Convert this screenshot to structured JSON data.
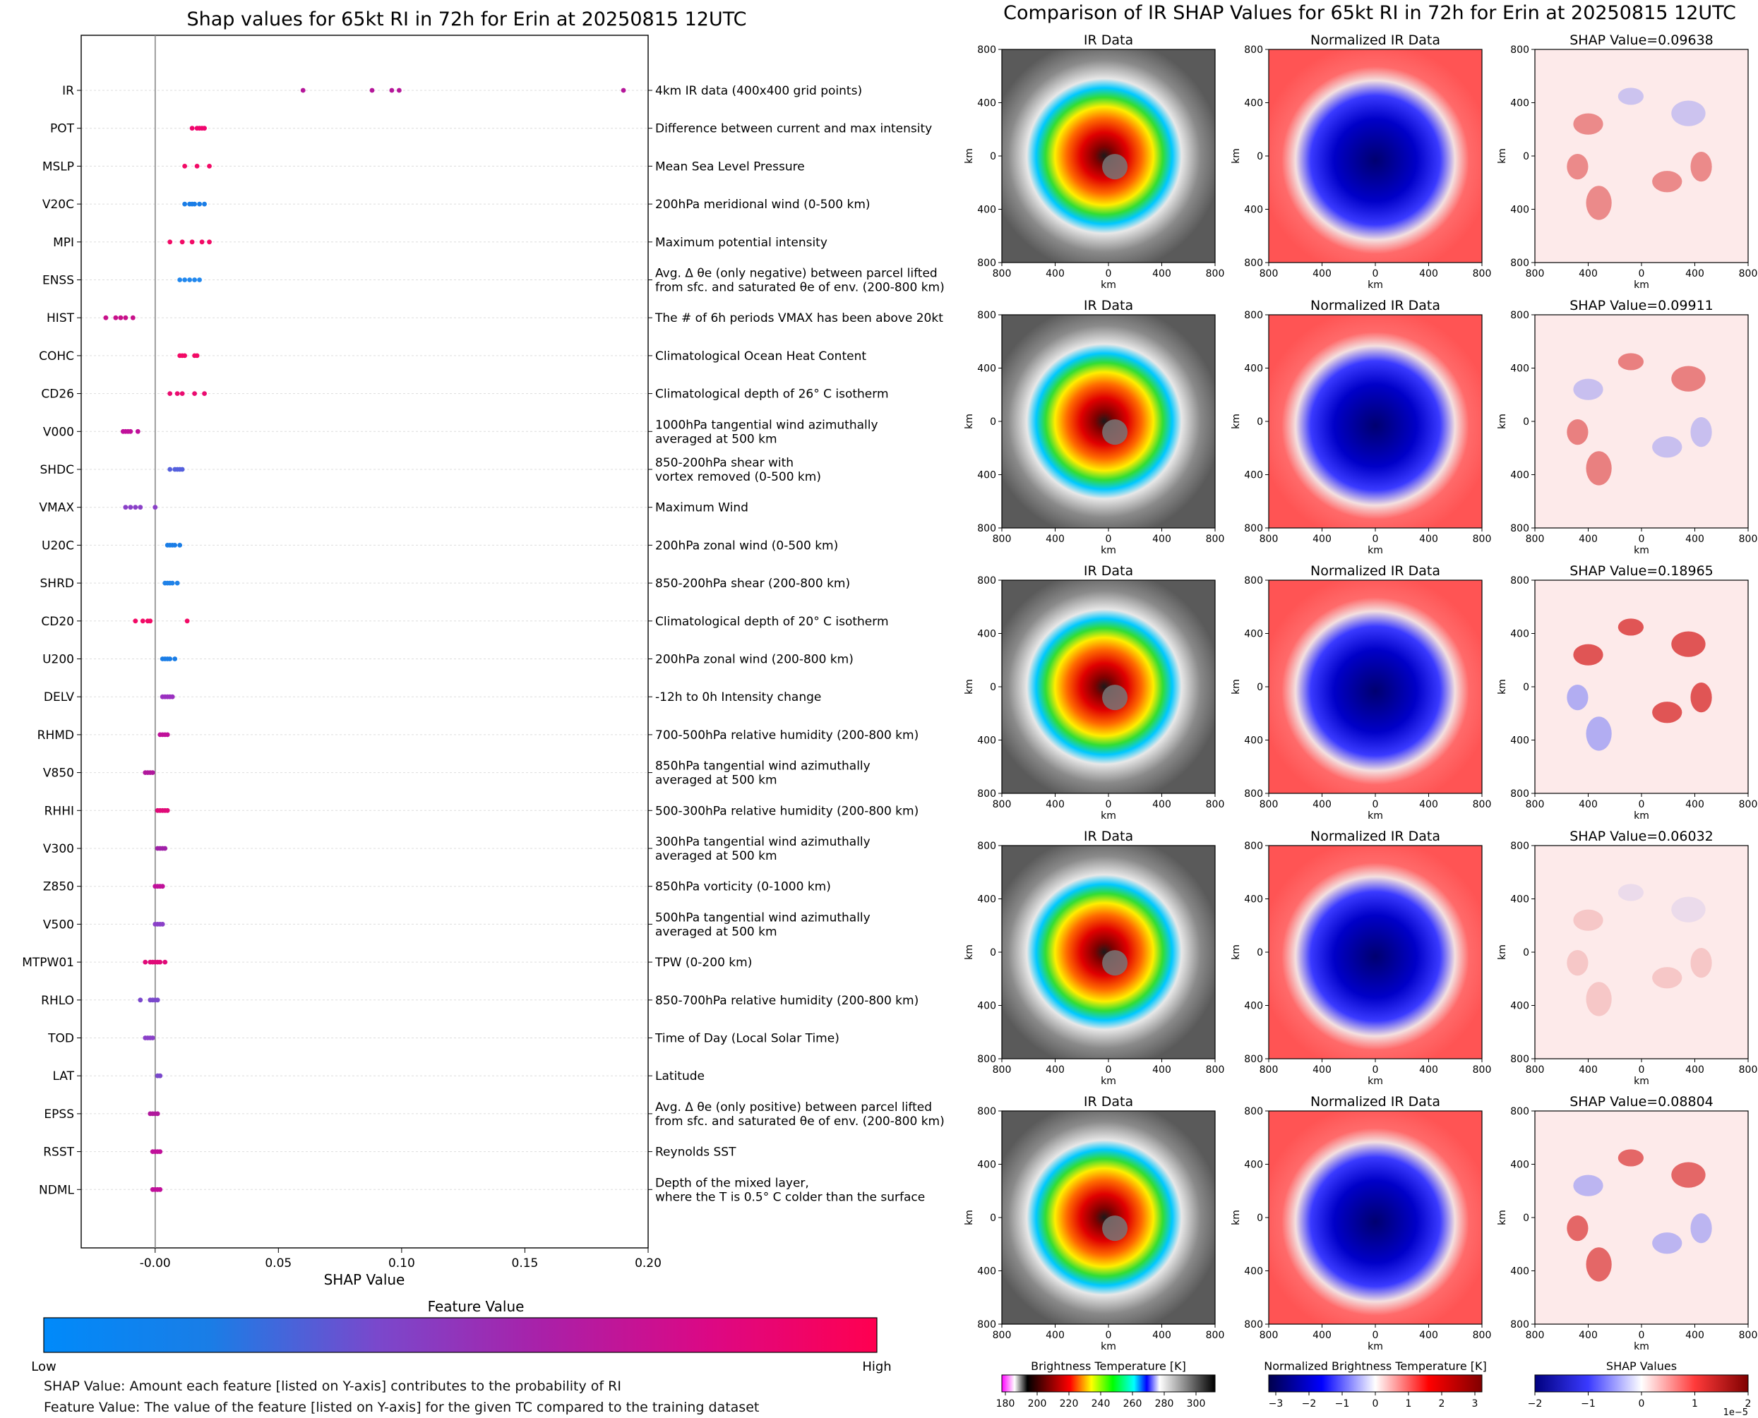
{
  "chart_data": [
    {
      "type": "scatter",
      "title": "Shap values for 65kt RI in 72h for Erin at 20250815 12UTC",
      "xlabel": "SHAP Value",
      "xlim": [
        -0.03,
        0.2
      ],
      "xticks": [
        "-0.00",
        "0.05",
        "0.10",
        "0.15",
        "0.20"
      ],
      "xtick_values": [
        0,
        0.05,
        0.1,
        0.15,
        0.2
      ],
      "features": [
        {
          "name": "IR",
          "desc": [
            "4km IR data (400x400 grid points)"
          ],
          "color": "#b5169a",
          "points": [
            0.06,
            0.088,
            0.096,
            0.099,
            0.19
          ]
        },
        {
          "name": "POT",
          "desc": [
            "Difference between current and max intensity"
          ],
          "color": "#f0066e",
          "points": [
            0.015,
            0.017,
            0.018,
            0.019,
            0.02
          ]
        },
        {
          "name": "MSLP",
          "desc": [
            "Mean Sea Level Pressure"
          ],
          "color": "#f20a66",
          "points": [
            0.012,
            0.017,
            0.022
          ]
        },
        {
          "name": "V20C",
          "desc": [
            "200hPa meridional wind (0-500 km)"
          ],
          "color": "#1a7de6",
          "points": [
            0.012,
            0.014,
            0.015,
            0.016,
            0.018,
            0.02
          ]
        },
        {
          "name": "MPI",
          "desc": [
            "Maximum potential intensity"
          ],
          "color": "#f20a66",
          "points": [
            0.006,
            0.011,
            0.015,
            0.019,
            0.022
          ]
        },
        {
          "name": "ENSS",
          "desc": [
            "Avg. Δ θe (only negative) between parcel lifted",
            "from sfc. and saturated θe of env. (200-800 km)"
          ],
          "color": "#2288ee",
          "points": [
            0.01,
            0.012,
            0.014,
            0.016,
            0.018
          ]
        },
        {
          "name": "HIST",
          "desc": [
            "The # of 6h periods VMAX has been above 20kt"
          ],
          "color": "#c8108a",
          "points": [
            -0.02,
            -0.016,
            -0.014,
            -0.012,
            -0.009
          ]
        },
        {
          "name": "COHC",
          "desc": [
            "Climatological Ocean Heat Content"
          ],
          "color": "#f20a66",
          "points": [
            0.01,
            0.011,
            0.012,
            0.016,
            0.017
          ]
        },
        {
          "name": "CD26",
          "desc": [
            "Climatological depth of 26° C isotherm"
          ],
          "color": "#ea0c70",
          "points": [
            0.006,
            0.009,
            0.011,
            0.016,
            0.02
          ]
        },
        {
          "name": "V000",
          "desc": [
            "1000hPa tangential wind azimuthally",
            "averaged at 500 km"
          ],
          "color": "#c0109a",
          "points": [
            -0.013,
            -0.012,
            -0.011,
            -0.01,
            -0.007
          ]
        },
        {
          "name": "SHDC",
          "desc": [
            "850-200hPa shear with",
            "vortex removed (0-500 km)"
          ],
          "color": "#5560dd",
          "points": [
            0.006,
            0.008,
            0.009,
            0.01,
            0.011
          ]
        },
        {
          "name": "VMAX",
          "desc": [
            "Maximum Wind"
          ],
          "color": "#8a40c8",
          "points": [
            -0.012,
            -0.01,
            -0.008,
            -0.006,
            0.0
          ]
        },
        {
          "name": "U20C",
          "desc": [
            "200hPa zonal wind (0-500 km)"
          ],
          "color": "#1a7de6",
          "points": [
            0.005,
            0.006,
            0.007,
            0.008,
            0.01
          ]
        },
        {
          "name": "SHRD",
          "desc": [
            "850-200hPa shear (200-800 km)"
          ],
          "color": "#2082e8",
          "points": [
            0.004,
            0.005,
            0.006,
            0.007,
            0.009
          ]
        },
        {
          "name": "CD20",
          "desc": [
            "Climatological depth of 20° C isotherm"
          ],
          "color": "#f20a66",
          "points": [
            -0.008,
            -0.005,
            -0.003,
            -0.002,
            0.013
          ]
        },
        {
          "name": "U200",
          "desc": [
            "200hPa zonal wind (200-800 km)"
          ],
          "color": "#1a7de6",
          "points": [
            0.003,
            0.004,
            0.005,
            0.006,
            0.008
          ]
        },
        {
          "name": "DELV",
          "desc": [
            "-12h to 0h Intensity change"
          ],
          "color": "#9a30c0",
          "points": [
            0.003,
            0.004,
            0.005,
            0.006,
            0.007
          ]
        },
        {
          "name": "RHMD",
          "desc": [
            "700-500hPa relative humidity (200-800 km)"
          ],
          "color": "#c0109a",
          "points": [
            0.002,
            0.003,
            0.004,
            0.005
          ]
        },
        {
          "name": "V850",
          "desc": [
            "850hPa tangential wind azimuthally",
            "averaged at 500 km"
          ],
          "color": "#b0189c",
          "points": [
            -0.004,
            -0.003,
            -0.002,
            -0.001
          ]
        },
        {
          "name": "RHHI",
          "desc": [
            "500-300hPa relative humidity (200-800 km)"
          ],
          "color": "#e00a78",
          "points": [
            0.001,
            0.002,
            0.003,
            0.004,
            0.005
          ]
        },
        {
          "name": "V300",
          "desc": [
            "300hPa tangential wind azimuthally",
            "averaged at 500 km"
          ],
          "color": "#a020a8",
          "points": [
            0.001,
            0.002,
            0.003,
            0.004
          ]
        },
        {
          "name": "Z850",
          "desc": [
            "850hPa vorticity (0-1000 km)"
          ],
          "color": "#c0109a",
          "points": [
            0.0,
            0.001,
            0.002,
            0.003
          ]
        },
        {
          "name": "V500",
          "desc": [
            "500hPa tangential wind azimuthally",
            "averaged at 500 km"
          ],
          "color": "#8a40c8",
          "points": [
            0.0,
            0.001,
            0.002,
            0.003
          ]
        },
        {
          "name": "MTPW01",
          "desc": [
            "TPW (0-200 km)"
          ],
          "color": "#e00a78",
          "points": [
            -0.004,
            -0.002,
            -0.001,
            0.0,
            0.001,
            0.002,
            0.004
          ]
        },
        {
          "name": "RHLO",
          "desc": [
            "850-700hPa relative humidity (200-800 km)"
          ],
          "color": "#7a48cc",
          "points": [
            -0.006,
            -0.002,
            -0.001,
            0.0,
            0.001
          ]
        },
        {
          "name": "TOD",
          "desc": [
            "Time of Day (Local Solar Time)"
          ],
          "color": "#8a40c8",
          "points": [
            -0.004,
            -0.003,
            -0.002,
            -0.001
          ]
        },
        {
          "name": "LAT",
          "desc": [
            "Latitude"
          ],
          "color": "#7a48cc",
          "points": [
            0.001,
            0.002
          ]
        },
        {
          "name": "EPSS",
          "desc": [
            "Avg. Δ θe (only positive) between parcel lifted",
            "from sfc. and saturated θe of env. (200-800 km)"
          ],
          "color": "#b0189c",
          "points": [
            -0.002,
            -0.001,
            0.0,
            0.001
          ]
        },
        {
          "name": "RSST",
          "desc": [
            "Reynolds SST"
          ],
          "color": "#c0109a",
          "points": [
            -0.001,
            0.0,
            0.001,
            0.002
          ]
        },
        {
          "name": "NDML",
          "desc": [
            "Depth of the mixed layer,",
            "where the T is 0.5° C colder than the surface"
          ],
          "color": "#c0109a",
          "points": [
            -0.001,
            0.0,
            0.001,
            0.002
          ]
        }
      ],
      "colorbar": {
        "title": "Feature Value",
        "low_label": "Low",
        "high_label": "High"
      }
    },
    {
      "type": "heatmap",
      "title": "Comparison of IR SHAP Values for 65kt RI in 72h for Erin at 20250815 12UTC",
      "column_titles": [
        "IR Data",
        "Normalized IR Data"
      ],
      "shap_title_prefix": "SHAP Value=",
      "rows": [
        {
          "shap": "0.09638",
          "intensity": 0.55
        },
        {
          "shap": "0.09911",
          "intensity": 0.6
        },
        {
          "shap": "0.18965",
          "intensity": 0.85
        },
        {
          "shap": "0.06032",
          "intensity": 0.2
        },
        {
          "shap": "0.08804",
          "intensity": 0.75
        }
      ],
      "axis_label": "km",
      "xticks": [
        "800",
        "400",
        "0",
        "400",
        "800"
      ],
      "yticks": [
        "800",
        "400",
        "0",
        "400",
        "800"
      ],
      "colorbars": [
        {
          "title": "Brightness Temperature [K]",
          "ticks": [
            "180",
            "200",
            "220",
            "240",
            "260",
            "280",
            "300"
          ]
        },
        {
          "title": "Normalized Brightness Temperature [K]",
          "ticks": [
            "−3",
            "−2",
            "−1",
            "0",
            "1",
            "2",
            "3"
          ]
        },
        {
          "title": "SHAP Values",
          "ticks": [
            "−2",
            "−1",
            "0",
            "1",
            "2"
          ],
          "offset": "1e−5"
        }
      ]
    }
  ],
  "notes": {
    "shap": "SHAP Value: Amount each feature [listed on Y-axis] contributes to the probability of RI",
    "feature": "Feature Value: The value of the feature [listed on Y-axis] for the given TC compared to the training dataset"
  }
}
